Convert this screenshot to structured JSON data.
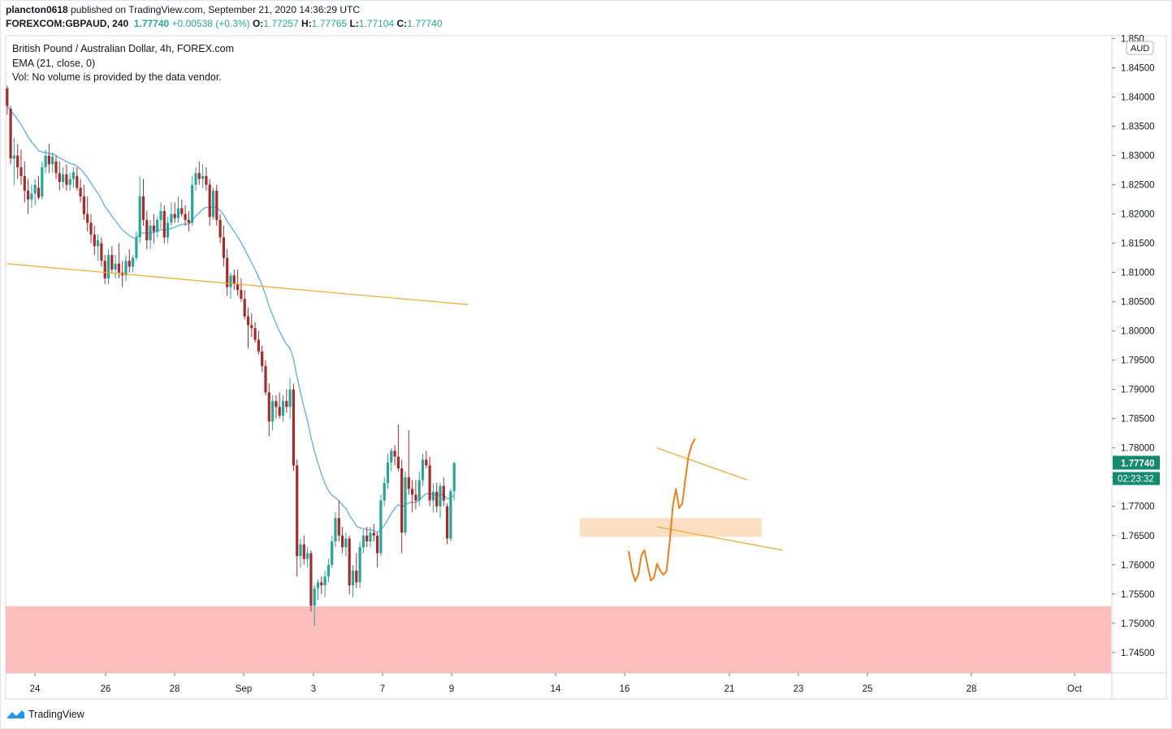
{
  "header": {
    "user": "plancton0618",
    "published_text": "published on TradingView.com, September 21, 2020 14:36:29 UTC",
    "symbol": "FOREXCOM:GBPAUD, 240",
    "last_price": "1.77740",
    "change": "+0.00538 (+0.3%)",
    "open_label": "O:",
    "open": "1.77257",
    "high_label": "H:",
    "high": "1.77765",
    "low_label": "L:",
    "low": "1.77104",
    "close_label": "C:",
    "close": "1.77740"
  },
  "legend": {
    "title": "British Pound / Australian Dollar, 4h, FOREX.com",
    "ema": "EMA (21, close, 0)",
    "vol": "Vol: No volume is provided by the data vendor."
  },
  "footer": {
    "brand": "TradingView"
  },
  "colors": {
    "up": "#26a69a",
    "down": "#a52b2b",
    "ema": "#5aaeea",
    "trendline": "#f5a623",
    "drawing": "#f07d1a",
    "support_zone": "#fcb9b9",
    "demand_zone": "#f9dcbc",
    "price_tag": "#138a6f"
  },
  "chart_data": {
    "type": "candlestick",
    "symbol": "GBPAUD",
    "timeframe": "4h",
    "currency": "AUD",
    "ylim": [
      1.7415,
      1.8505
    ],
    "y_ticks": [
      "1.74500",
      "1.75000",
      "1.75500",
      "1.76000",
      "1.76500",
      "1.77000",
      "1.77500",
      "1.78000",
      "1.78500",
      "1.79000",
      "1.79500",
      "1.80000",
      "1.80500",
      "1.81000",
      "1.81500",
      "1.82000",
      "1.82500",
      "1.83000",
      "1.83500",
      "1.84000",
      "1.84500",
      "1.850"
    ],
    "x_ticks": [
      "24",
      "26",
      "28",
      "Sep",
      "3",
      "7",
      "9",
      "14",
      "16",
      "21",
      "23",
      "25",
      "28",
      "Oct"
    ],
    "last_price_label": "1.77740",
    "countdown_label": "02:23:32",
    "ohlc": [
      [
        1.8415,
        1.842,
        1.837,
        1.8385
      ],
      [
        1.838,
        1.8385,
        1.8285,
        1.8295
      ],
      [
        1.8295,
        1.833,
        1.825,
        1.83
      ],
      [
        1.83,
        1.832,
        1.826,
        1.828
      ],
      [
        1.828,
        1.831,
        1.825,
        1.8265
      ],
      [
        1.8265,
        1.829,
        1.822,
        1.824
      ],
      [
        1.824,
        1.826,
        1.82,
        1.8225
      ],
      [
        1.8225,
        1.825,
        1.821,
        1.8235
      ],
      [
        1.8235,
        1.826,
        1.8215,
        1.825
      ],
      [
        1.8245,
        1.8265,
        1.8225,
        1.8228
      ],
      [
        1.823,
        1.829,
        1.8225,
        1.828
      ],
      [
        1.828,
        1.831,
        1.827,
        1.83
      ],
      [
        1.83,
        1.832,
        1.827,
        1.8285
      ],
      [
        1.8285,
        1.8305,
        1.827,
        1.8298
      ],
      [
        1.829,
        1.83,
        1.826,
        1.827
      ],
      [
        1.827,
        1.829,
        1.824,
        1.8255
      ],
      [
        1.8255,
        1.828,
        1.8245,
        1.8268
      ],
      [
        1.8268,
        1.8285,
        1.824,
        1.825
      ],
      [
        1.825,
        1.827,
        1.824,
        1.826
      ],
      [
        1.826,
        1.828,
        1.8245,
        1.8272
      ],
      [
        1.8265,
        1.828,
        1.824,
        1.8245
      ],
      [
        1.8245,
        1.826,
        1.822,
        1.823
      ],
      [
        1.823,
        1.825,
        1.819,
        1.82
      ],
      [
        1.82,
        1.823,
        1.817,
        1.8185
      ],
      [
        1.8185,
        1.82,
        1.815,
        1.8165
      ],
      [
        1.8165,
        1.818,
        1.813,
        1.8145
      ],
      [
        1.8145,
        1.8165,
        1.812,
        1.8155
      ],
      [
        1.815,
        1.816,
        1.811,
        1.812
      ],
      [
        1.812,
        1.813,
        1.808,
        1.809
      ],
      [
        1.809,
        1.814,
        1.808,
        1.813
      ],
      [
        1.813,
        1.8145,
        1.81,
        1.8105
      ],
      [
        1.8105,
        1.813,
        1.809,
        1.8115
      ],
      [
        1.8115,
        1.815,
        1.809,
        1.81
      ],
      [
        1.81,
        1.812,
        1.8075,
        1.8095
      ],
      [
        1.8095,
        1.813,
        1.8085,
        1.812
      ],
      [
        1.812,
        1.814,
        1.81,
        1.811
      ],
      [
        1.811,
        1.813,
        1.81,
        1.8125
      ],
      [
        1.8125,
        1.817,
        1.812,
        1.816
      ],
      [
        1.816,
        1.8265,
        1.815,
        1.823
      ],
      [
        1.823,
        1.826,
        1.818,
        1.819
      ],
      [
        1.819,
        1.8205,
        1.814,
        1.8155
      ],
      [
        1.8155,
        1.819,
        1.814,
        1.818
      ],
      [
        1.818,
        1.82,
        1.815,
        1.817
      ],
      [
        1.817,
        1.8195,
        1.816,
        1.819
      ],
      [
        1.819,
        1.822,
        1.8175,
        1.8205
      ],
      [
        1.8205,
        1.8215,
        1.815,
        1.816
      ],
      [
        1.816,
        1.8195,
        1.815,
        1.8185
      ],
      [
        1.8185,
        1.822,
        1.818,
        1.82
      ],
      [
        1.82,
        1.822,
        1.8185,
        1.8193
      ],
      [
        1.8193,
        1.823,
        1.8185,
        1.821
      ],
      [
        1.821,
        1.8225,
        1.8195,
        1.82
      ],
      [
        1.82,
        1.8215,
        1.818,
        1.819
      ],
      [
        1.819,
        1.8205,
        1.817,
        1.8185
      ],
      [
        1.8185,
        1.8265,
        1.818,
        1.825
      ],
      [
        1.825,
        1.828,
        1.824,
        1.827
      ],
      [
        1.827,
        1.829,
        1.825,
        1.826
      ],
      [
        1.826,
        1.8285,
        1.8245,
        1.8265
      ],
      [
        1.8265,
        1.828,
        1.824,
        1.825
      ],
      [
        1.825,
        1.826,
        1.818,
        1.8195
      ],
      [
        1.8195,
        1.8245,
        1.819,
        1.824
      ],
      [
        1.824,
        1.825,
        1.818,
        1.819
      ],
      [
        1.819,
        1.82,
        1.815,
        1.816
      ],
      [
        1.816,
        1.818,
        1.811,
        1.8125
      ],
      [
        1.8125,
        1.814,
        1.806,
        1.8075
      ],
      [
        1.8075,
        1.81,
        1.8055,
        1.8095
      ],
      [
        1.8095,
        1.8105,
        1.807,
        1.808
      ],
      [
        1.808,
        1.8105,
        1.806,
        1.807
      ],
      [
        1.807,
        1.809,
        1.805,
        1.8055
      ],
      [
        1.8055,
        1.807,
        1.802,
        1.8025
      ],
      [
        1.8025,
        1.804,
        1.797,
        1.801
      ],
      [
        1.801,
        1.803,
        1.799,
        1.8005
      ],
      [
        1.8005,
        1.8015,
        1.798,
        1.7985
      ],
      [
        1.7985,
        1.8,
        1.796,
        1.7965
      ],
      [
        1.7965,
        1.7975,
        1.793,
        1.794
      ],
      [
        1.794,
        1.795,
        1.789,
        1.7895
      ],
      [
        1.7895,
        1.791,
        1.782,
        1.7845
      ],
      [
        1.7845,
        1.789,
        1.783,
        1.788
      ],
      [
        1.788,
        1.789,
        1.785,
        1.787
      ],
      [
        1.787,
        1.7895,
        1.785,
        1.7855
      ],
      [
        1.7855,
        1.789,
        1.7845,
        1.788
      ],
      [
        1.788,
        1.79,
        1.786,
        1.787
      ],
      [
        1.787,
        1.792,
        1.785,
        1.79
      ],
      [
        1.79,
        1.791,
        1.776,
        1.777
      ],
      [
        1.777,
        1.778,
        1.758,
        1.7615
      ],
      [
        1.7615,
        1.7645,
        1.7595,
        1.7635
      ],
      [
        1.7635,
        1.765,
        1.76,
        1.761
      ],
      [
        1.761,
        1.763,
        1.7595,
        1.762
      ],
      [
        1.762,
        1.7625,
        1.752,
        1.753
      ],
      [
        1.753,
        1.7565,
        1.7495,
        1.756
      ],
      [
        1.756,
        1.7575,
        1.754,
        1.757
      ],
      [
        1.757,
        1.758,
        1.755,
        1.7565
      ],
      [
        1.7565,
        1.759,
        1.7545,
        1.758
      ],
      [
        1.758,
        1.761,
        1.757,
        1.76
      ],
      [
        1.76,
        1.765,
        1.7595,
        1.764
      ],
      [
        1.764,
        1.769,
        1.763,
        1.768
      ],
      [
        1.768,
        1.771,
        1.764,
        1.765
      ],
      [
        1.765,
        1.7665,
        1.762,
        1.763
      ],
      [
        1.763,
        1.7655,
        1.7615,
        1.7645
      ],
      [
        1.7645,
        1.765,
        1.755,
        1.7565
      ],
      [
        1.7565,
        1.76,
        1.7545,
        1.759
      ],
      [
        1.759,
        1.762,
        1.756,
        1.757
      ],
      [
        1.757,
        1.764,
        1.756,
        1.763
      ],
      [
        1.763,
        1.766,
        1.762,
        1.765
      ],
      [
        1.765,
        1.7665,
        1.763,
        1.764
      ],
      [
        1.764,
        1.7665,
        1.763,
        1.7655
      ],
      [
        1.7655,
        1.767,
        1.764,
        1.765
      ],
      [
        1.765,
        1.7655,
        1.7595,
        1.762
      ],
      [
        1.762,
        1.772,
        1.7615,
        1.771
      ],
      [
        1.771,
        1.775,
        1.77,
        1.774
      ],
      [
        1.774,
        1.779,
        1.773,
        1.7775
      ],
      [
        1.7775,
        1.78,
        1.776,
        1.7795
      ],
      [
        1.7795,
        1.7805,
        1.777,
        1.7785
      ],
      [
        1.7785,
        1.784,
        1.776,
        1.7765
      ],
      [
        1.7765,
        1.778,
        1.762,
        1.7655
      ],
      [
        1.7655,
        1.776,
        1.765,
        1.775
      ],
      [
        1.775,
        1.783,
        1.772,
        1.773
      ],
      [
        1.773,
        1.7745,
        1.769,
        1.772
      ],
      [
        1.772,
        1.7745,
        1.7695,
        1.771
      ],
      [
        1.771,
        1.776,
        1.77,
        1.7745
      ],
      [
        1.7745,
        1.779,
        1.7735,
        1.778
      ],
      [
        1.778,
        1.7795,
        1.7765,
        1.777
      ],
      [
        1.777,
        1.7785,
        1.77,
        1.771
      ],
      [
        1.771,
        1.774,
        1.769,
        1.7725
      ],
      [
        1.7725,
        1.774,
        1.769,
        1.77
      ],
      [
        1.77,
        1.774,
        1.768,
        1.7735
      ],
      [
        1.7735,
        1.775,
        1.77,
        1.771
      ],
      [
        1.77,
        1.7705,
        1.7635,
        1.7645
      ],
      [
        1.7645,
        1.773,
        1.764,
        1.7726
      ],
      [
        1.7726,
        1.77765,
        1.771,
        1.7774
      ]
    ],
    "ema": {
      "name": "EMA (21, close, 0)",
      "period": 21
    },
    "drawings": [
      {
        "type": "trendline",
        "from": [
          0,
          1.8115
        ],
        "to": [
          132,
          1.8045
        ]
      },
      {
        "type": "trendline",
        "from": [
          186,
          1.78
        ],
        "to": [
          212,
          1.7745
        ]
      },
      {
        "type": "trendline",
        "from": [
          186,
          1.7665
        ],
        "to": [
          222,
          1.7625
        ]
      },
      {
        "type": "zone",
        "x_from": [
          164,
          216
        ],
        "y_range": [
          1.7648,
          1.768
        ]
      },
      {
        "type": "zone",
        "x_from": [
          0,
          315
        ],
        "y_range": [
          1.7415,
          1.7529
        ]
      }
    ],
    "projection_path": [
      [
        0,
        1.7622
      ],
      [
        1,
        1.759
      ],
      [
        2,
        1.7572
      ],
      [
        3,
        1.7583
      ],
      [
        4,
        1.7616
      ],
      [
        5,
        1.7625
      ],
      [
        6,
        1.7598
      ],
      [
        7,
        1.7573
      ],
      [
        8,
        1.7578
      ],
      [
        9,
        1.7602
      ],
      [
        10,
        1.759
      ],
      [
        11,
        1.7583
      ],
      [
        12,
        1.7589
      ],
      [
        13,
        1.7638
      ],
      [
        14,
        1.77
      ],
      [
        15,
        1.773
      ],
      [
        16,
        1.7697
      ],
      [
        17,
        1.7705
      ],
      [
        18,
        1.7747
      ],
      [
        19,
        1.7786
      ],
      [
        20,
        1.7805
      ],
      [
        21,
        1.7815
      ]
    ]
  }
}
